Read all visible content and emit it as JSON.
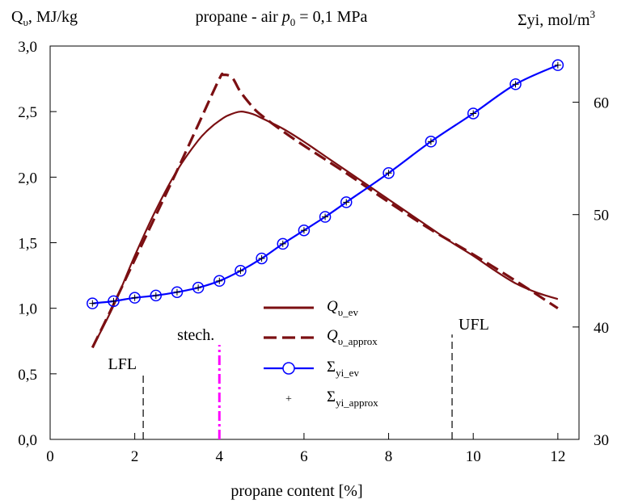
{
  "chart_data": {
    "type": "line",
    "title": {
      "prefix": "propane - air ",
      "var": "p",
      "sub": "0",
      "suffix": " = 0,1 MPa"
    },
    "left_axis_label": {
      "base": "Q",
      "sub": "υ",
      "rest": ", MJ/kg"
    },
    "right_axis_label": {
      "base": "Σyi, mol/m",
      "sup": "3"
    },
    "xlabel": "propane content [%]",
    "xlim": [
      0,
      12.5
    ],
    "x_ticks": [
      0,
      2,
      4,
      6,
      8,
      10,
      12
    ],
    "x_tick_labels": [
      "0",
      "2",
      "4",
      "6",
      "8",
      "10",
      "12"
    ],
    "ylim_left": [
      0,
      3.0
    ],
    "y_left_ticks": [
      0,
      0.5,
      1.0,
      1.5,
      2.0,
      2.5,
      3.0
    ],
    "y_left_tick_labels": [
      "0,0",
      "0,5",
      "1,0",
      "1,5",
      "2,0",
      "2,5",
      "3,0"
    ],
    "ylim_right": [
      30,
      65
    ],
    "y_right_ticks": [
      30,
      40,
      50,
      60
    ],
    "y_right_tick_labels": [
      "30",
      "40",
      "50",
      "60"
    ],
    "grid": false,
    "legend_position": "center-bottom",
    "series": [
      {
        "name": {
          "base": "Q",
          "sub": "υ_ev"
        },
        "axis": "left",
        "style": "solid",
        "color": "#7b0f12",
        "marker": "none",
        "x": [
          1.0,
          1.5,
          2.0,
          2.5,
          3.0,
          3.5,
          3.8,
          4.0,
          4.2,
          4.5,
          4.8,
          5.0,
          5.5,
          6.0,
          6.5,
          7.0,
          7.5,
          8.0,
          8.5,
          9.0,
          9.5,
          10.0,
          10.5,
          11.0,
          11.5,
          12.0
        ],
        "y": [
          0.7,
          1.02,
          1.4,
          1.75,
          2.05,
          2.28,
          2.38,
          2.43,
          2.47,
          2.5,
          2.48,
          2.45,
          2.37,
          2.27,
          2.16,
          2.05,
          1.94,
          1.83,
          1.72,
          1.61,
          1.5,
          1.4,
          1.29,
          1.19,
          1.12,
          1.07
        ]
      },
      {
        "name": {
          "base": "Q",
          "sub": "υ_approx"
        },
        "axis": "left",
        "style": "dashed",
        "color": "#7b0f12",
        "marker": "none",
        "x": [
          1.0,
          1.5,
          2.0,
          2.5,
          3.0,
          3.5,
          4.0,
          4.1,
          4.3,
          4.5,
          4.8,
          5.0,
          5.5,
          6.0,
          7.0,
          8.0,
          9.0,
          10.0,
          11.0,
          12.0
        ],
        "y": [
          0.7,
          1.03,
          1.37,
          1.71,
          2.05,
          2.4,
          2.75,
          2.78,
          2.76,
          2.65,
          2.53,
          2.47,
          2.35,
          2.24,
          2.03,
          1.81,
          1.6,
          1.41,
          1.21,
          1.0
        ]
      },
      {
        "name": {
          "base": "Σ",
          "sub": "yi_ev"
        },
        "axis": "right",
        "style": "solid",
        "color": "#0000ff",
        "marker": "circle",
        "x": [
          1.0,
          1.5,
          2.0,
          2.5,
          3.0,
          3.5,
          4.0,
          4.5,
          5.0,
          5.5,
          6.0,
          6.5,
          7.0,
          8.0,
          9.0,
          10.0,
          11.0,
          12.0
        ],
        "y": [
          42.1,
          42.3,
          42.6,
          42.8,
          43.1,
          43.5,
          44.1,
          45.0,
          46.1,
          47.4,
          48.6,
          49.8,
          51.1,
          53.7,
          56.5,
          59.0,
          61.6,
          63.3
        ]
      },
      {
        "name": {
          "base": "Σ",
          "sub": "yi_approx"
        },
        "axis": "right",
        "style": "none",
        "color": "#000000",
        "marker": "plus",
        "x": [
          1.0,
          1.5,
          2.0,
          2.5,
          3.0,
          3.5,
          4.0,
          4.5,
          5.0,
          5.5,
          6.0,
          6.5,
          7.0,
          8.0,
          9.0,
          10.0,
          11.0,
          12.0
        ],
        "y": [
          42.1,
          42.3,
          42.6,
          42.8,
          43.1,
          43.5,
          44.1,
          45.0,
          46.1,
          47.4,
          48.6,
          49.8,
          51.1,
          53.7,
          56.5,
          59.0,
          61.6,
          63.3
        ]
      }
    ],
    "markers": [
      {
        "label": "LFL",
        "x": 2.2,
        "y_from": 0,
        "y_to": 0.5,
        "style": "dashed",
        "color": "#000000"
      },
      {
        "label": "stech.",
        "x": 4.0,
        "y_from": 0,
        "y_to": 0.72,
        "style": "dashdot",
        "color": "#ff00ff"
      },
      {
        "label": "UFL",
        "x": 9.5,
        "y_from": 0,
        "y_to": 0.8,
        "style": "dashed",
        "color": "#000000"
      }
    ]
  }
}
